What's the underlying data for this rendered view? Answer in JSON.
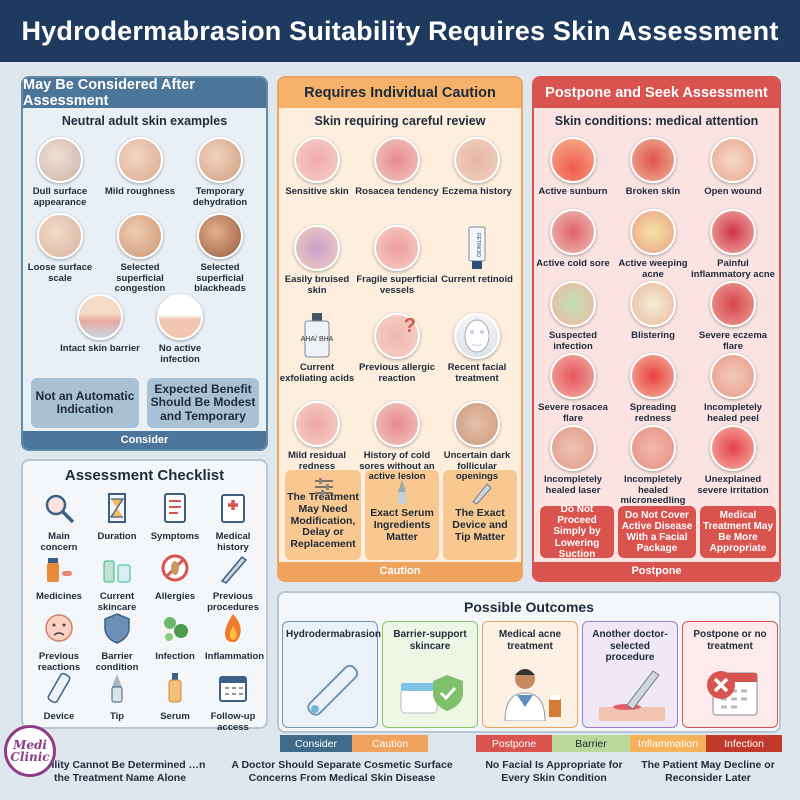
{
  "title": "Hydrodermabrasion Suitability Requires Skin Assessment",
  "consider": {
    "header": "May Be Considered After Assessment",
    "subheader": "Neutral adult skin examples",
    "items": [
      "Dull surface appearance",
      "Mild roughness",
      "Temporary dehydration",
      "Loose surface scale",
      "Selected superficial congestion",
      "Selected superficial blackheads",
      "Intact skin barrier",
      "No active infection"
    ],
    "notes": [
      "Not an Automatic Indication",
      "Expected Benefit Should Be Modest and Temporary"
    ],
    "footer": "Consider"
  },
  "caution": {
    "header": "Requires Individual Caution",
    "subheader": "Skin requiring careful review",
    "items": [
      "Sensitive skin",
      "Rosacea tendency",
      "Eczema history",
      "Easily bruised skin",
      "Fragile superficial vessels",
      "Current retinoid",
      "Current exfoliating acids",
      "Previous allergic reaction",
      "Recent facial treatment",
      "Mild residual redness",
      "History of cold sores without an active lesion",
      "Uncertain dark follicular openings"
    ],
    "bottle_label": "AHA/ BHA",
    "tube_label": "RETINOID",
    "notes": [
      "The Treatment May Need Modification, Delay or Replacement",
      "Exact Serum Ingredients Matter",
      "The Exact Device and Tip Matter"
    ],
    "footer": "Caution"
  },
  "postpone": {
    "header": "Postpone and Seek Assessment",
    "subheader": "Skin conditions: medical attention",
    "items": [
      "Active sunburn",
      "Broken skin",
      "Open wound",
      "Active cold sore",
      "Active weeping acne",
      "Painful inflammatory acne",
      "Suspected infection",
      "Blistering",
      "Severe eczema flare",
      "Severe rosacea flare",
      "Spreading redness",
      "Incompletely healed peel",
      "Incompletely healed laser",
      "Incompletely healed microneedling",
      "Unexplained severe irritation"
    ],
    "notes": [
      "Do Not Proceed Simply by Lowering Suction",
      "Do Not Cover Active Disease With a Facial Package",
      "Medical Treatment May Be More Appropriate"
    ],
    "footer": "Postpone"
  },
  "checklist": {
    "header": "Assessment Checklist",
    "items": [
      "Main concern",
      "Duration",
      "Symptoms",
      "Medical history",
      "Medicines",
      "Current skincare",
      "Allergies",
      "Previous procedures",
      "Previous reactions",
      "Barrier condition",
      "Infection",
      "Inflammation",
      "Device",
      "Tip",
      "Serum",
      "Follow-up access"
    ]
  },
  "outcomes": {
    "header": "Possible Outcomes",
    "items": [
      "Hydrodermabrasion",
      "Barrier-support skincare",
      "Medical acne treatment",
      "Another doctor-selected procedure",
      "Postpone or no treatment"
    ]
  },
  "legend": [
    "Consider",
    "Caution",
    "Postpone",
    "Barrier",
    "Inflammation",
    "Infection"
  ],
  "legend_colors": [
    "#3f6a8a",
    "#f0a35e",
    "#d9534f",
    "#b9d89a",
    "#f6b25a",
    "#c0392b"
  ],
  "bottom": [
    "…bility Cannot Be Determined …n the Treatment Name Alone",
    "A Doctor Should Separate Cosmetic Surface Concerns From Medical Skin Disease",
    "No Facial Is Appropriate for Every Skin Condition",
    "The Patient May Decline or Reconsider Later"
  ],
  "logo": "Medi Clinic"
}
